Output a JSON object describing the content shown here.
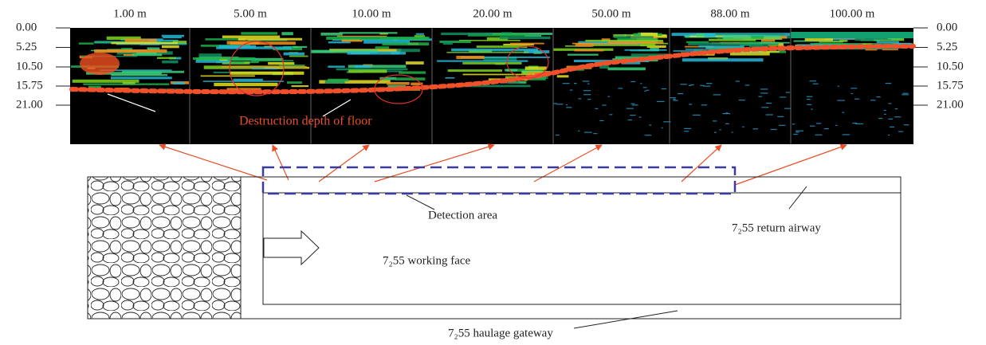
{
  "columns": [
    "1.00 m",
    "5.00 m",
    "10.00 m",
    "20.00 m",
    "50.00 m",
    "88.00 m",
    "100.00 m"
  ],
  "depths": [
    "0.00",
    "5.25",
    "10.50",
    "15.75",
    "21.00"
  ],
  "annotation": "Destruction depth of floor",
  "detection_area": "Detection area",
  "return_airway": "7₂55 return airway",
  "working_face": "7₂55 working face",
  "haulage_gateway": "7₂55 haulage gateway"
}
